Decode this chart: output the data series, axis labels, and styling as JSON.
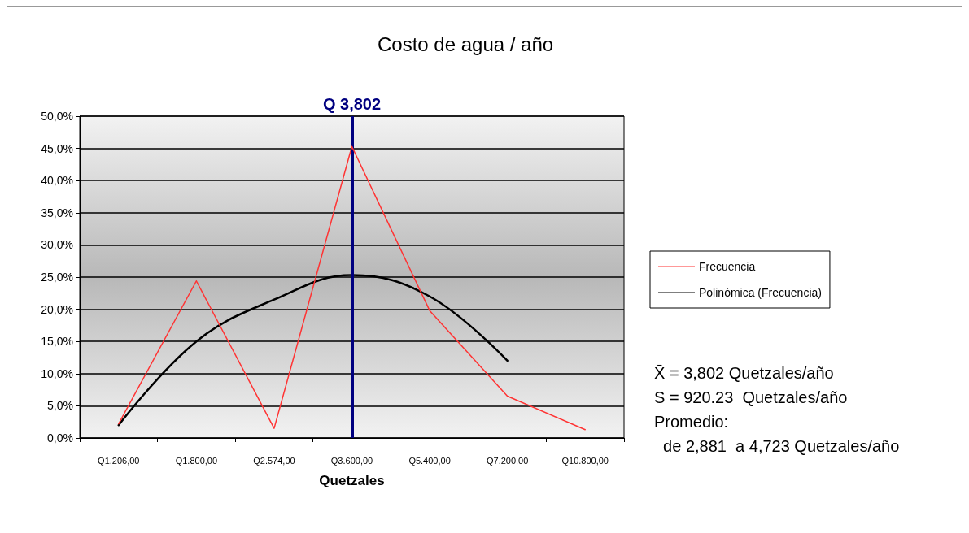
{
  "chart_data": {
    "type": "line",
    "title": "Costo de agua / año",
    "xlabel": "Quetzales",
    "categories": [
      "Q1.206,00",
      "Q1.800,00",
      "Q2.574,00",
      "Q3.600,00",
      "Q5.400,00",
      "Q7.200,00",
      "Q10.800,00"
    ],
    "series": [
      {
        "name": "Frecuencia",
        "color": "#ff3333",
        "values": [
          2.2,
          24.4,
          1.5,
          45.3,
          19.8,
          6.5,
          1.3
        ]
      },
      {
        "name": "Polinómica (Frecuencia)",
        "color": "#000000",
        "values": [
          2,
          15,
          21.5,
          25.3,
          22,
          12,
          null
        ]
      }
    ],
    "ylim": [
      0,
      50
    ],
    "yticks": [
      {
        "value": 0,
        "label": "0,0%"
      },
      {
        "value": 5,
        "label": "5,0%"
      },
      {
        "value": 10,
        "label": "10,0%"
      },
      {
        "value": 15,
        "label": "15,0%"
      },
      {
        "value": 20,
        "label": "20,0%"
      },
      {
        "value": 25,
        "label": "25,0%"
      },
      {
        "value": 30,
        "label": "30,0%"
      },
      {
        "value": 35,
        "label": "35,0%"
      },
      {
        "value": 40,
        "label": "40,0%"
      },
      {
        "value": 45,
        "label": "45,0%"
      },
      {
        "value": 50,
        "label": "50,0%"
      }
    ],
    "grid": "y",
    "legend": "right",
    "marker": "none",
    "line_style": "solid",
    "ref_lines": [
      {
        "axis": "x",
        "value": "Q3.600,00",
        "label": "Q 3,802",
        "color": "#000080"
      }
    ],
    "annotations": [
      "X̄ = 3,802 Quetzales/año",
      "S = 920.23  Quetzales/año",
      "Promedio:",
      "  de 2,881  a 4,723 Quetzales/año"
    ]
  }
}
